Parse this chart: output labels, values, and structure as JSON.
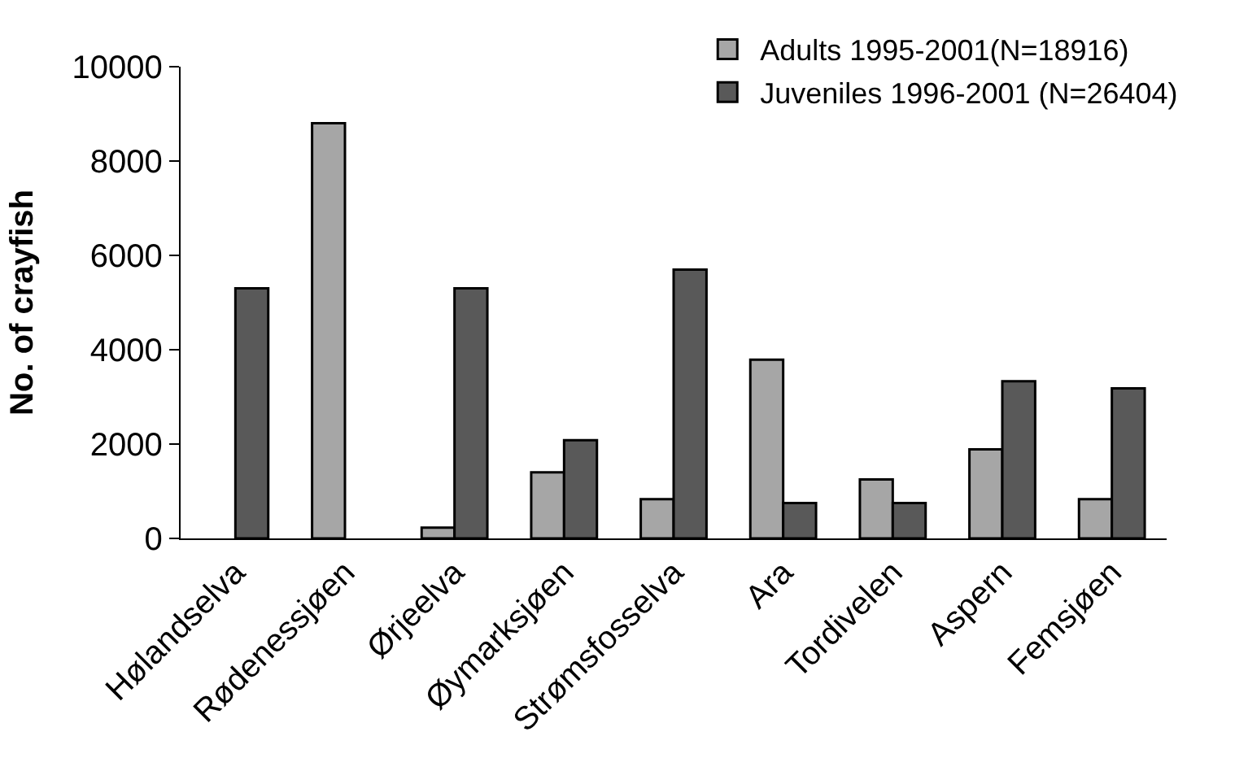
{
  "chart_data": {
    "type": "bar",
    "ylabel": "No. of crayfish",
    "categories": [
      "Hølandselva",
      "Rødenessjøen",
      "Ørjeelva",
      "Øymarksjøen",
      "Strømsfosselva",
      "Ara",
      "Tordivelen",
      "Aspern",
      "Femsjøen"
    ],
    "series": [
      {
        "name": "Adults 1995-2001(N=18916)",
        "color": "#a6a6a6",
        "values": [
          null,
          8800,
          230,
          1400,
          830,
          3790,
          1250,
          1890,
          830
        ]
      },
      {
        "name": "Juveniles 1996-2001 (N=26404)",
        "color": "#595959",
        "values": [
          5300,
          null,
          5300,
          2080,
          5700,
          750,
          750,
          3330,
          3180
        ]
      }
    ],
    "ylim": [
      0,
      10000
    ],
    "yticks": [
      0,
      2000,
      4000,
      6000,
      8000,
      10000
    ],
    "legend": "top right"
  }
}
